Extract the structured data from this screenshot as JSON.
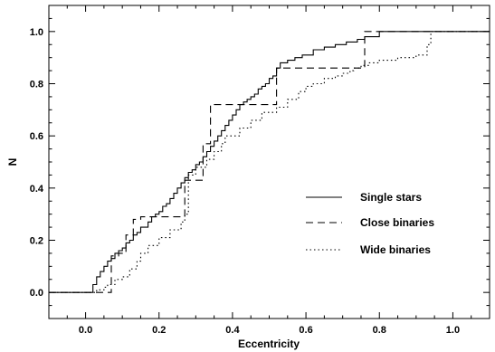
{
  "chart_data": {
    "type": "line",
    "title": "",
    "xlabel": "Eccentricity",
    "ylabel": "N",
    "xlim": [
      -0.1,
      1.1
    ],
    "ylim": [
      -0.1,
      1.1
    ],
    "grid": false,
    "legend_position": "right",
    "x_ticks": [
      0.0,
      0.2,
      0.4,
      0.6,
      0.8,
      1.0
    ],
    "x_tick_labels": [
      "0.0",
      "0.2",
      "0.4",
      "0.6",
      "0.8",
      "1.0"
    ],
    "y_ticks": [
      0.0,
      0.2,
      0.4,
      0.6,
      0.8,
      1.0
    ],
    "y_tick_labels": [
      "0.0",
      "0.2",
      "0.4",
      "0.6",
      "0.8",
      "1.0"
    ],
    "series": [
      {
        "name": "Single stars",
        "style": "solid",
        "color": "#000000",
        "x": [
          -0.1,
          0.02,
          0.03,
          0.04,
          0.05,
          0.06,
          0.07,
          0.08,
          0.09,
          0.1,
          0.11,
          0.12,
          0.13,
          0.14,
          0.15,
          0.17,
          0.18,
          0.19,
          0.2,
          0.21,
          0.22,
          0.23,
          0.24,
          0.25,
          0.26,
          0.27,
          0.28,
          0.29,
          0.3,
          0.31,
          0.32,
          0.33,
          0.34,
          0.35,
          0.36,
          0.37,
          0.38,
          0.39,
          0.4,
          0.41,
          0.42,
          0.43,
          0.44,
          0.45,
          0.46,
          0.47,
          0.48,
          0.49,
          0.5,
          0.51,
          0.52,
          0.53,
          0.55,
          0.57,
          0.59,
          0.62,
          0.65,
          0.68,
          0.71,
          0.74,
          0.76,
          0.8,
          1.1
        ],
        "y": [
          0.0,
          0.03,
          0.06,
          0.08,
          0.1,
          0.12,
          0.13,
          0.15,
          0.16,
          0.17,
          0.19,
          0.2,
          0.22,
          0.23,
          0.25,
          0.27,
          0.29,
          0.3,
          0.31,
          0.33,
          0.34,
          0.36,
          0.38,
          0.4,
          0.42,
          0.44,
          0.46,
          0.47,
          0.49,
          0.5,
          0.52,
          0.54,
          0.56,
          0.58,
          0.6,
          0.62,
          0.64,
          0.66,
          0.68,
          0.7,
          0.72,
          0.73,
          0.74,
          0.75,
          0.76,
          0.78,
          0.79,
          0.8,
          0.82,
          0.83,
          0.86,
          0.88,
          0.89,
          0.9,
          0.91,
          0.93,
          0.94,
          0.95,
          0.96,
          0.97,
          0.98,
          1.0,
          1.0
        ]
      },
      {
        "name": "Close binaries",
        "style": "dashed",
        "color": "#000000",
        "x": [
          -0.1,
          0.07,
          0.09,
          0.11,
          0.13,
          0.15,
          0.2,
          0.25,
          0.27,
          0.3,
          0.32,
          0.34,
          0.52,
          0.75,
          0.76,
          1.1
        ],
        "y": [
          0.0,
          0.14,
          0.15,
          0.22,
          0.28,
          0.29,
          0.29,
          0.29,
          0.43,
          0.43,
          0.57,
          0.72,
          0.86,
          0.86,
          1.0,
          1.0
        ]
      },
      {
        "name": "Wide binaries",
        "style": "dotted",
        "color": "#000000",
        "x": [
          -0.1,
          0.03,
          0.05,
          0.06,
          0.08,
          0.1,
          0.12,
          0.14,
          0.15,
          0.17,
          0.2,
          0.23,
          0.26,
          0.27,
          0.28,
          0.3,
          0.33,
          0.35,
          0.37,
          0.38,
          0.42,
          0.45,
          0.48,
          0.52,
          0.55,
          0.58,
          0.6,
          0.62,
          0.65,
          0.68,
          0.7,
          0.72,
          0.73,
          0.75,
          0.77,
          0.8,
          0.85,
          0.9,
          0.93,
          0.94,
          1.1
        ],
        "y": [
          0.0,
          0.01,
          0.02,
          0.03,
          0.05,
          0.06,
          0.09,
          0.12,
          0.15,
          0.18,
          0.21,
          0.24,
          0.27,
          0.3,
          0.45,
          0.48,
          0.51,
          0.54,
          0.57,
          0.6,
          0.63,
          0.66,
          0.69,
          0.71,
          0.74,
          0.77,
          0.79,
          0.8,
          0.82,
          0.83,
          0.84,
          0.85,
          0.86,
          0.87,
          0.88,
          0.89,
          0.9,
          0.91,
          0.95,
          1.0,
          1.0
        ]
      }
    ],
    "legend": {
      "entries": [
        "Single stars",
        "Close binaries",
        "Wide binaries"
      ]
    }
  }
}
